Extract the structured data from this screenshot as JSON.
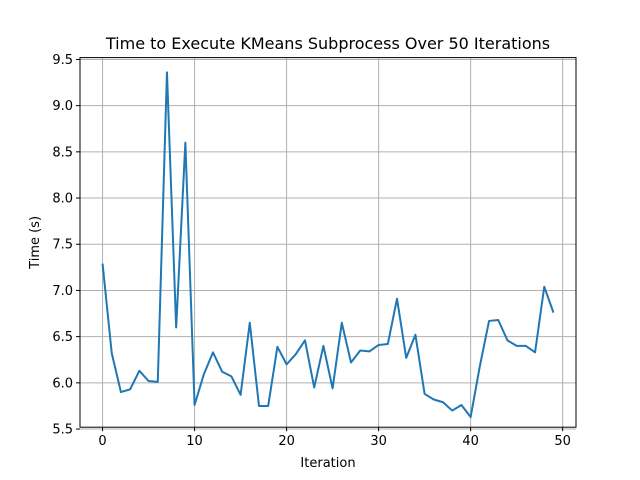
{
  "chart_data": {
    "type": "line",
    "title": "Time to Execute KMeans Subprocess Over 50 Iterations",
    "xlabel": "Iteration",
    "ylabel": "Time (s)",
    "xlim": [
      -2.45,
      51.45
    ],
    "ylim": [
      5.52,
      9.52
    ],
    "xticks": [
      0,
      10,
      20,
      30,
      40,
      50
    ],
    "yticks": [
      5.5,
      6.0,
      6.5,
      7.0,
      7.5,
      8.0,
      8.5,
      9.0,
      9.5
    ],
    "xtick_labels": [
      "0",
      "10",
      "20",
      "30",
      "40",
      "50"
    ],
    "ytick_labels": [
      "5.5",
      "6.0",
      "6.5",
      "7.0",
      "7.5",
      "8.0",
      "8.5",
      "9.0",
      "9.5"
    ],
    "grid": true,
    "color": "#1f77b4",
    "series": [
      {
        "x": [
          0,
          1,
          2,
          3,
          4,
          5,
          6,
          7,
          8,
          9,
          10,
          11,
          12,
          13,
          14,
          15,
          16,
          17,
          18,
          19,
          20,
          21,
          22,
          23,
          24,
          25,
          26,
          27,
          28,
          29,
          30,
          31,
          32,
          33,
          34,
          35,
          36,
          37,
          38,
          39,
          40,
          41,
          42,
          43,
          44,
          45,
          46,
          47,
          48,
          49
        ],
        "values": [
          7.29,
          6.32,
          5.9,
          5.93,
          6.13,
          6.02,
          6.01,
          9.36,
          6.6,
          8.6,
          5.76,
          6.09,
          6.33,
          6.12,
          6.07,
          5.87,
          6.65,
          5.75,
          5.75,
          6.39,
          6.2,
          6.31,
          6.46,
          5.95,
          6.4,
          5.94,
          6.65,
          6.22,
          6.35,
          6.34,
          6.41,
          6.42,
          6.91,
          6.27,
          6.52,
          5.88,
          5.82,
          5.79,
          5.7,
          5.76,
          5.63,
          6.18,
          6.67,
          6.68,
          6.46,
          6.4,
          6.4,
          6.33,
          7.04,
          6.76
        ]
      }
    ]
  }
}
